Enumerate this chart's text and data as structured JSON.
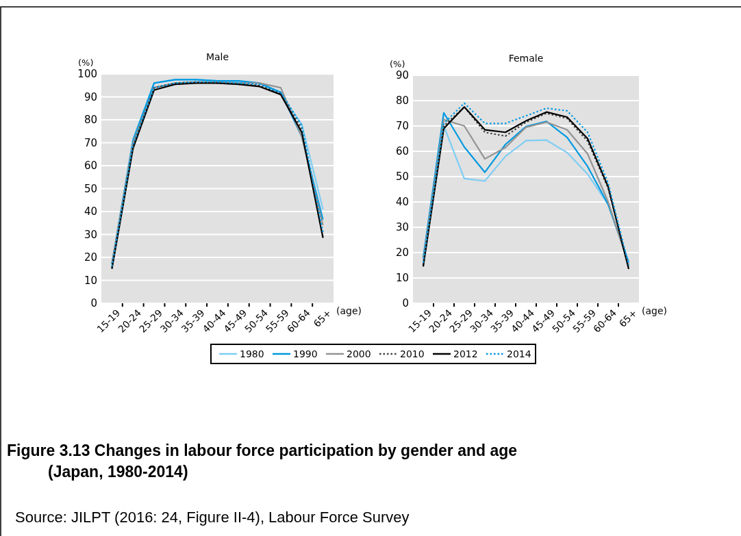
{
  "chart_data": [
    {
      "type": "line",
      "title": "Male",
      "xlabel": "(age)",
      "ylabel": "(%)",
      "categories": [
        "15-19",
        "20-24",
        "25-29",
        "30-34",
        "35-39",
        "40-44",
        "45-49",
        "50-54",
        "55-59",
        "60-64",
        "65+"
      ],
      "ylim": [
        0,
        100
      ],
      "yticks": [
        0,
        10,
        20,
        30,
        40,
        50,
        60,
        70,
        80,
        90,
        100
      ],
      "grid": "y",
      "legend": "bottom",
      "marker": "none",
      "annotations": [
        "Figure 3.13  Changes in labour force participation by gender and age\n(Japan, 1980-2014)",
        "Source: JILPT (2016: 24, Figure II-4), Labour Force Survey"
      ],
      "series": [
        {
          "name": "1980",
          "color": "#7fcdf3",
          "line_style": "solid",
          "values": [
            17.5,
            71.5,
            96,
            97.5,
            97.5,
            97,
            96.5,
            96,
            91,
            78,
            41
          ]
        },
        {
          "name": "1990",
          "color": "#0099e0",
          "line_style": "solid",
          "values": [
            17,
            71,
            96,
            97.5,
            97.5,
            97,
            97,
            96,
            92,
            72.5,
            36.5
          ]
        },
        {
          "name": "2000",
          "color": "#939393",
          "line_style": "solid",
          "values": [
            17.5,
            70,
            94,
            96,
            96.5,
            96.5,
            96,
            96,
            94,
            72.5,
            34
          ]
        },
        {
          "name": "2010",
          "color": "#404040",
          "line_style": "dotted",
          "values": [
            15.5,
            68.5,
            94,
            96,
            96.5,
            96,
            95.5,
            95,
            91.5,
            76,
            29
          ]
        },
        {
          "name": "2012",
          "color": "#000000",
          "line_style": "solid",
          "values": [
            15,
            67.5,
            93,
            95.5,
            96,
            96,
            95.5,
            94.5,
            91,
            74.5,
            28.5
          ]
        },
        {
          "name": "2014",
          "color": "#0099e0",
          "line_style": "dotted",
          "values": [
            16,
            69,
            94,
            96,
            96.5,
            96.5,
            96,
            95.5,
            92,
            77.5,
            31
          ]
        }
      ]
    },
    {
      "type": "line",
      "title": "Female",
      "xlabel": "(age)",
      "ylabel": "(%)",
      "categories": [
        "15-19",
        "20-24",
        "25-29",
        "30-34",
        "35-39",
        "40-44",
        "45-49",
        "50-54",
        "55-59",
        "60-64",
        "65+"
      ],
      "ylim": [
        0,
        90
      ],
      "yticks": [
        0,
        10,
        20,
        30,
        40,
        50,
        60,
        70,
        80,
        90
      ],
      "grid": "y",
      "legend": "bottom",
      "marker": "none",
      "series": [
        {
          "name": "1980",
          "color": "#7fcdf3",
          "line_style": "solid",
          "values": [
            18.5,
            70,
            49.2,
            48.3,
            58,
            64.2,
            64.4,
            59.5,
            51,
            39,
            16.5
          ]
        },
        {
          "name": "1990",
          "color": "#0099e0",
          "line_style": "solid",
          "values": [
            18,
            75.2,
            61.7,
            51.7,
            62.7,
            69.8,
            71.8,
            65.5,
            54,
            39,
            16
          ]
        },
        {
          "name": "2000",
          "color": "#939393",
          "line_style": "solid",
          "values": [
            17,
            72.5,
            70,
            57,
            61.5,
            69.5,
            71.5,
            68.5,
            59,
            40,
            15
          ]
        },
        {
          "name": "2010",
          "color": "#404040",
          "line_style": "dotted",
          "values": [
            15,
            70,
            77.5,
            67.5,
            66,
            71.5,
            75,
            73,
            64,
            45.5,
            14
          ]
        },
        {
          "name": "2012",
          "color": "#000000",
          "line_style": "solid",
          "values": [
            14.5,
            69,
            77.5,
            68.5,
            67.5,
            72,
            75.5,
            73.5,
            65,
            46,
            13.5
          ]
        },
        {
          "name": "2014",
          "color": "#0099e0",
          "line_style": "dotted",
          "values": [
            16,
            71,
            79,
            71,
            71,
            74,
            77,
            76,
            67.5,
            47.5,
            15
          ]
        }
      ]
    }
  ]
}
